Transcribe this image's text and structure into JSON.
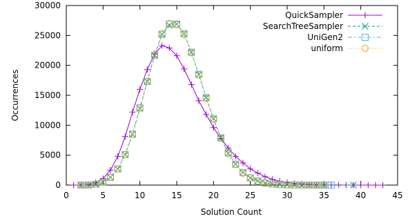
{
  "chart_data": {
    "type": "line",
    "title": "",
    "xlabel": "Solution Count",
    "ylabel": "Occurrences",
    "xlim": [
      0,
      45
    ],
    "ylim": [
      0,
      30000
    ],
    "xticks": [
      0,
      5,
      10,
      15,
      20,
      25,
      30,
      35,
      40,
      45
    ],
    "yticks": [
      0,
      5000,
      10000,
      15000,
      20000,
      25000,
      30000
    ],
    "grid": false,
    "legend_position": "top-right",
    "series": [
      {
        "name": "QuickSampler",
        "color": "#9400d3",
        "marker": "plus",
        "dash": "",
        "x": [
          1,
          2,
          3,
          4,
          5,
          6,
          7,
          8,
          9,
          10,
          11,
          12,
          13,
          14,
          15,
          16,
          17,
          18,
          19,
          20,
          21,
          22,
          23,
          24,
          25,
          26,
          27,
          28,
          29,
          30,
          31,
          32,
          33,
          34,
          35,
          36,
          37,
          38,
          39,
          40,
          41,
          42,
          43
        ],
        "y": [
          0,
          20,
          100,
          400,
          1100,
          2500,
          4800,
          8100,
          12200,
          16000,
          19300,
          21900,
          23300,
          22900,
          21600,
          19400,
          16800,
          14100,
          11800,
          9600,
          7800,
          6200,
          4800,
          3700,
          2700,
          2000,
          1400,
          950,
          650,
          420,
          270,
          170,
          100,
          60,
          35,
          20,
          12,
          6,
          4,
          2,
          1,
          1,
          0
        ]
      },
      {
        "name": "SearchTreeSampler",
        "color": "#009e73",
        "marker": "x",
        "dash": "4,3",
        "x": [
          2,
          3,
          4,
          5,
          6,
          7,
          8,
          9,
          10,
          11,
          12,
          13,
          14,
          15,
          16,
          17,
          18,
          19,
          20,
          21,
          22,
          23,
          24,
          25,
          26,
          27,
          28,
          29,
          30,
          31,
          32,
          33,
          34,
          35,
          39
        ],
        "y": [
          0,
          20,
          150,
          500,
          1300,
          2700,
          5100,
          8500,
          12800,
          17300,
          21700,
          25200,
          26700,
          26900,
          25300,
          22200,
          18500,
          14600,
          11100,
          7900,
          5300,
          3500,
          2100,
          1200,
          700,
          350,
          180,
          90,
          40,
          20,
          10,
          5,
          2,
          1,
          0
        ]
      },
      {
        "name": "UniGen2",
        "color": "#56b4e9",
        "marker": "square",
        "dash": "6,3,2,3",
        "x": [
          2,
          3,
          4,
          5,
          6,
          7,
          8,
          9,
          10,
          11,
          12,
          13,
          14,
          15,
          16,
          17,
          18,
          19,
          20,
          21,
          22,
          23,
          24,
          25,
          26,
          27,
          28,
          29,
          30,
          31,
          32,
          33,
          34,
          35,
          36
        ],
        "y": [
          0,
          20,
          150,
          500,
          1300,
          2700,
          5100,
          8500,
          12900,
          17300,
          21700,
          25200,
          26900,
          26900,
          25300,
          22200,
          18500,
          14600,
          11100,
          7900,
          5400,
          3500,
          2100,
          1200,
          700,
          350,
          180,
          90,
          40,
          20,
          10,
          5,
          2,
          1,
          0
        ]
      },
      {
        "name": "uniform",
        "color": "#e69f00",
        "marker": "circle",
        "dash": "1,3",
        "x": [
          2,
          3,
          4,
          5,
          6,
          7,
          8,
          9,
          10,
          11,
          12,
          13,
          14,
          15,
          16,
          17,
          18,
          19,
          20,
          21,
          22,
          23,
          24,
          25,
          26,
          27,
          28,
          29,
          30,
          31,
          32,
          33,
          34,
          35
        ],
        "y": [
          0,
          20,
          150,
          500,
          1300,
          2700,
          5100,
          8500,
          12900,
          17300,
          21800,
          25300,
          27000,
          26800,
          25200,
          22100,
          18400,
          14500,
          11000,
          7800,
          5300,
          3400,
          2000,
          1200,
          650,
          330,
          170,
          80,
          35,
          15,
          8,
          4,
          2,
          1
        ]
      }
    ]
  }
}
